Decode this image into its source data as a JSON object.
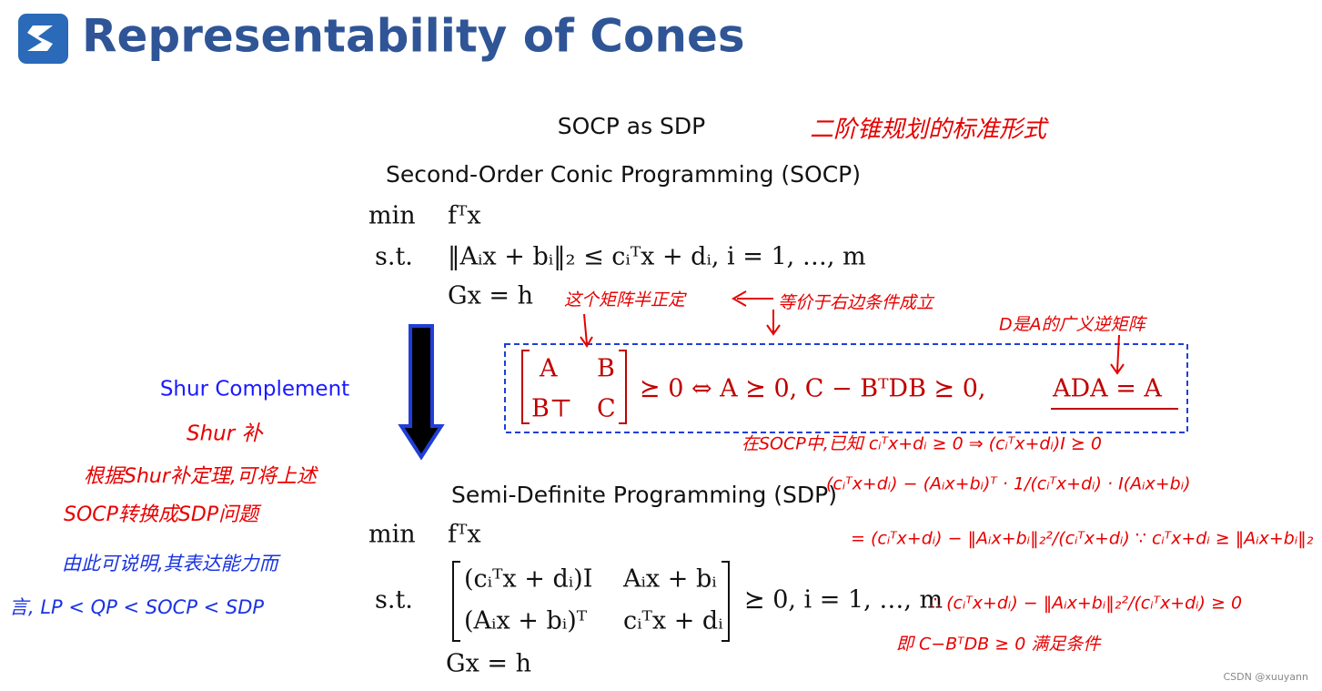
{
  "header": {
    "title": "Representability of Cones"
  },
  "slide": {
    "heading": "SOCP as SDP",
    "socp": {
      "title": "Second-Order Conic Programming (SOCP)",
      "min_label": "min",
      "objective": "fᵀx",
      "st_label": "s.t.",
      "constraint": "‖Aᵢx + bᵢ‖₂ ≤ cᵢᵀx + dᵢ,    i = 1, …, m",
      "equality": "Gx = h"
    },
    "schur": {
      "label": "Shur Complement",
      "matrix": [
        [
          "A",
          "B"
        ],
        [
          "B⊤",
          "C"
        ]
      ],
      "condition": "⪰ 0  ⇔  A ⪰ 0, C − BᵀDB ⪰ 0,",
      "extra": "ADA = A"
    },
    "sdp": {
      "title": "Semi-Definite Programming (SDP)",
      "min_label": "min",
      "objective": "fᵀx",
      "st_label": "s.t.",
      "matrix": [
        [
          "(cᵢᵀx + dᵢ)I",
          "Aᵢx + bᵢ"
        ],
        [
          "(Aᵢx + bᵢ)ᵀ",
          "cᵢᵀx + dᵢ"
        ]
      ],
      "condition": "⪰ 0,  i = 1, …, m",
      "equality": "Gx = h"
    }
  },
  "annotations": {
    "red": [
      "二阶锥规划的标准形式",
      "这个矩阵半正定",
      "等价于右边条件成立",
      "D是A的广义逆矩阵",
      "在SOCP中,已知 cᵢᵀx+dᵢ ≥ 0 ⇒ (cᵢᵀx+dᵢ)I ⪰ 0",
      "(cᵢᵀx+dᵢ) − (Aᵢx+bᵢ)ᵀ · 1/(cᵢᵀx+dᵢ) · I(Aᵢx+bᵢ)",
      "= (cᵢᵀx+dᵢ) − ‖Aᵢx+bᵢ‖₂²/(cᵢᵀx+dᵢ)   ∵ cᵢᵀx+dᵢ ≥ ‖Aᵢx+bᵢ‖₂",
      "∴ (cᵢᵀx+dᵢ) − ‖Aᵢx+bᵢ‖₂²/(cᵢᵀx+dᵢ) ≥ 0",
      "即 C−BᵀDB ≥ 0 满足条件",
      "Shur 补",
      "根据Shur补定理,可将上述",
      "SOCP转换成SDP问题"
    ],
    "blue": [
      "由此可说明,其表达能力而",
      "言, LP < QP < SOCP < SDP"
    ]
  },
  "footer": {
    "watermark": "CSDN @xuuyann"
  }
}
